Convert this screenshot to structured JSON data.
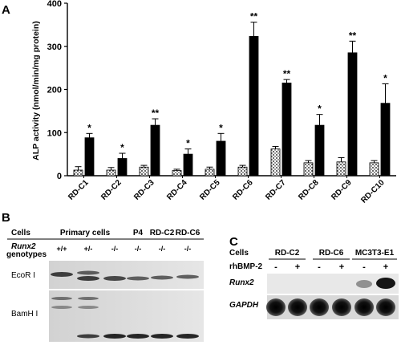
{
  "panelA": {
    "letter": "A",
    "chart_data": {
      "type": "bar",
      "xlabel": "",
      "ylabel": "ALP activity (nmol/min/mg protein)",
      "ylim": [
        0,
        400
      ],
      "yticks": [
        0,
        100,
        200,
        300,
        400
      ],
      "categories": [
        "RD-C1",
        "RD-C2",
        "RD-C3",
        "RD-C4",
        "RD-C5",
        "RD-C6",
        "RD-C7",
        "RD-C8",
        "RD-C9",
        "RD-C10"
      ],
      "series": [
        {
          "values": [
            13,
            13,
            20,
            12,
            15,
            20,
            62,
            30,
            32,
            30
          ],
          "errors": [
            8,
            6,
            4,
            3,
            5,
            4,
            6,
            5,
            10,
            5
          ],
          "pattern": "dotted"
        },
        {
          "values": [
            88,
            40,
            117,
            50,
            80,
            323,
            215,
            117,
            285,
            168
          ],
          "errors": [
            10,
            12,
            15,
            12,
            18,
            33,
            8,
            25,
            27,
            45
          ],
          "pattern": "solid"
        }
      ],
      "significance": [
        "*",
        "*",
        "**",
        "*",
        "*",
        "**",
        "**",
        "*",
        "**",
        "*"
      ],
      "legend": "none",
      "grid": false
    }
  },
  "panelB": {
    "letter": "B",
    "header": {
      "cells": "Cells",
      "genotype_gene": "Runx2",
      "genotype_word": "genotypes"
    },
    "groups": [
      "Primary cells",
      "P4",
      "RD-C2",
      "RD-C6"
    ],
    "genotypes": [
      "+/+",
      "+/-",
      "-/-",
      "-/-",
      "-/-",
      "-/-"
    ],
    "blots": [
      "EcoR I",
      "BamH I"
    ]
  },
  "panelC": {
    "letter": "C",
    "header": {
      "cells": "Cells",
      "treatment": "rhBMP-2"
    },
    "groups": [
      "RD-C2",
      "RD-C6",
      "MC3T3-E1"
    ],
    "treatment_states": [
      "-",
      "+",
      "-",
      "+",
      "-",
      "+"
    ],
    "blots": [
      "Runx2",
      "GAPDH"
    ]
  }
}
